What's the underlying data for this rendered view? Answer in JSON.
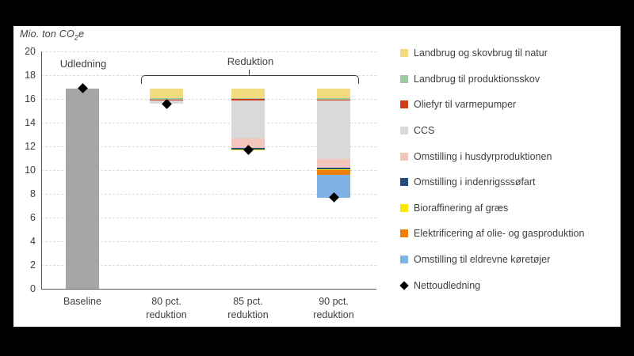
{
  "figure": {
    "y_axis_title": {
      "prefix": "Mio. ton CO",
      "sub": "2",
      "suffix": "e"
    },
    "group_labels": {
      "baseline": "Udledning",
      "reductions": "Reduktion"
    }
  },
  "chart_data": {
    "type": "bar",
    "subtype": "stacked-floating-columns-waterfall",
    "title": "Mio. ton CO2e",
    "xlabel": "",
    "ylabel": "Mio. ton CO2e",
    "ylim": [
      0,
      20
    ],
    "ytick_step": 2,
    "grid": "horizontal-dashed",
    "legend_position": "right",
    "categories": [
      "Baseline",
      "80 pct. reduktion",
      "85 pct. reduktion",
      "90 pct. reduktion"
    ],
    "category_label_lines": [
      [
        "Baseline"
      ],
      [
        "80 pct.",
        "reduktion"
      ],
      [
        "85 pct.",
        "reduktion"
      ],
      [
        "90 pct.",
        "reduktion"
      ]
    ],
    "bars": [
      {
        "category": "Baseline",
        "bottom": 0,
        "top": 16.9,
        "net": 16.9,
        "segments_bottom_up": [
          {
            "name": "Udledning",
            "value": 16.9,
            "color": "#A6A6A6"
          }
        ]
      },
      {
        "category": "80 pct. reduktion",
        "bottom": 15.6,
        "top": 16.9,
        "net": 15.6,
        "segments_bottom_up": [
          {
            "name": "CCS",
            "value": 0.25,
            "color": "#D9D9D9"
          },
          {
            "name": "Oliefyr til varmepumper",
            "value": 0.1,
            "color": "#D13B1C"
          },
          {
            "name": "Landbrug til produktionsskov",
            "value": 0.1,
            "color": "#9DC8A1"
          },
          {
            "name": "Landbrug og skovbrug til natur",
            "value": 0.85,
            "color": "#F2DC7F"
          }
        ]
      },
      {
        "category": "85 pct. reduktion",
        "bottom": 11.7,
        "top": 16.9,
        "net": 11.7,
        "segments_bottom_up": [
          {
            "name": "Bioraffinering af græs",
            "value": 0.05,
            "color": "#FFE600"
          },
          {
            "name": "Omstilling i indenrigsssøfart",
            "value": 0.1,
            "color": "#1F4E79"
          },
          {
            "name": "Omstilling i husdyrproduktionen",
            "value": 0.8,
            "color": "#F4C5BD"
          },
          {
            "name": "CCS",
            "value": 3.25,
            "color": "#D9D9D9"
          },
          {
            "name": "Oliefyr til varmepumper",
            "value": 0.1,
            "color": "#D13B1C"
          },
          {
            "name": "Landbrug til produktionsskov",
            "value": 0.1,
            "color": "#9DC8A1"
          },
          {
            "name": "Landbrug og skovbrug til natur",
            "value": 0.8,
            "color": "#F2DC7F"
          }
        ]
      },
      {
        "category": "90 pct. reduktion",
        "bottom": 7.7,
        "top": 16.9,
        "net": 7.7,
        "segments_bottom_up": [
          {
            "name": "Omstilling til eldrevne køretøjer",
            "value": 1.9,
            "color": "#7FB2E5"
          },
          {
            "name": "Elektrificering af olie- og gasproduktion",
            "value": 0.45,
            "color": "#F07F09"
          },
          {
            "name": "Bioraffinering af græs",
            "value": 0.05,
            "color": "#FFE600"
          },
          {
            "name": "Omstilling i indenrigsssøfart",
            "value": 0.1,
            "color": "#1F4E79"
          },
          {
            "name": "Omstilling i husdyrproduktionen",
            "value": 0.75,
            "color": "#F4C5BD"
          },
          {
            "name": "CCS",
            "value": 4.9,
            "color": "#D9D9D9"
          },
          {
            "name": "Oliefyr til varmepumper",
            "value": 0.1,
            "color": "#D13B1C"
          },
          {
            "name": "Landbrug til produktionsskov",
            "value": 0.15,
            "color": "#9DC8A1"
          },
          {
            "name": "Landbrug og skovbrug til natur",
            "value": 0.8,
            "color": "#F2DC7F"
          }
        ]
      }
    ],
    "nettoudledning_series": {
      "name": "Nettoudledning",
      "marker": "diamond",
      "color": "#000000",
      "values": [
        16.9,
        15.6,
        11.7,
        7.7
      ]
    },
    "legend": [
      {
        "label": "Landbrug og skovbrug til natur",
        "color": "#F2DC7F",
        "marker": "square"
      },
      {
        "label": "Landbrug til produktionsskov",
        "color": "#9DC8A1",
        "marker": "square"
      },
      {
        "label": "Oliefyr til varmepumper",
        "color": "#D13B1C",
        "marker": "square"
      },
      {
        "label": "CCS",
        "color": "#D9D9D9",
        "marker": "square"
      },
      {
        "label": "Omstilling i husdyrproduktionen",
        "color": "#F4C5BD",
        "marker": "square"
      },
      {
        "label": "Omstilling i indenrigsssøfart",
        "color": "#1F4E79",
        "marker": "square"
      },
      {
        "label": "Bioraffinering af græs",
        "color": "#FFE600",
        "marker": "square"
      },
      {
        "label": "Elektrificering af olie- og gasproduktion",
        "color": "#F07F09",
        "marker": "square"
      },
      {
        "label": "Omstilling til eldrevne køretøjer",
        "color": "#7FB2E5",
        "marker": "square"
      },
      {
        "label": "Nettoudledning",
        "color": "#000000",
        "marker": "diamond"
      }
    ]
  }
}
